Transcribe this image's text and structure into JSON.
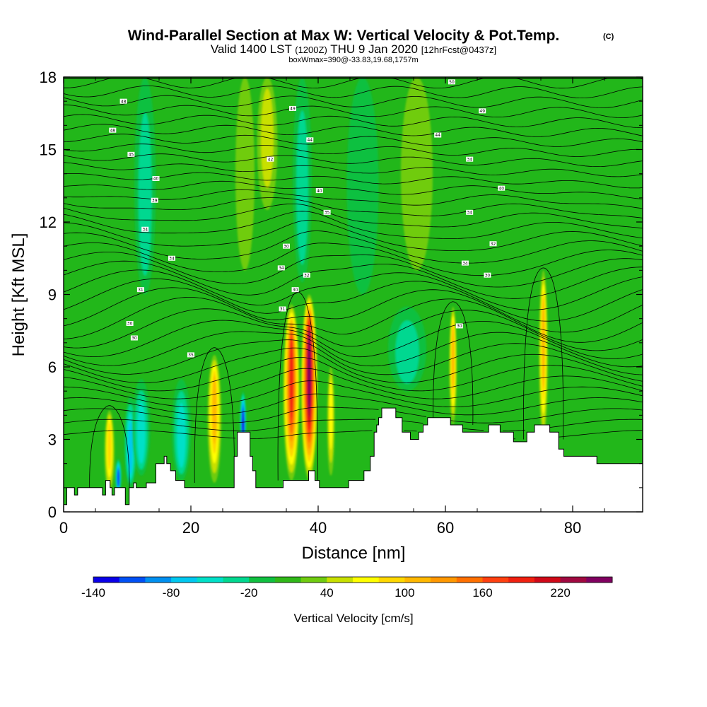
{
  "chart_data": {
    "type": "heatmap",
    "title": "Wind-Parallel Section at Max W: Vertical Velocity & Pot.Temp.",
    "title_mark": "(C)",
    "subtitle_parts": [
      "Valid 1400 LST ",
      "(1200Z)",
      " THU 9 Jan 2020 ",
      "[12hrFcst@0437z]"
    ],
    "subtitle2": "boxWmax=390@-33.83,19.68,1757m",
    "xlabel": "Distance [nm]",
    "ylabel": "Height [Kft MSL]",
    "xlim": [
      0,
      91
    ],
    "ylim": [
      0,
      18
    ],
    "x_ticks": [
      0,
      20,
      40,
      60,
      80
    ],
    "y_ticks": [
      0,
      3,
      6,
      9,
      12,
      15,
      18
    ],
    "colorbar": {
      "title": "Vertical Velocity [cm/s]",
      "edges": [
        -140,
        -120,
        -100,
        -80,
        -60,
        -40,
        -20,
        0,
        20,
        40,
        60,
        80,
        100,
        120,
        140,
        160,
        180,
        200,
        220,
        240,
        260
      ],
      "tick_values": [
        -140,
        -80,
        -20,
        40,
        100,
        160,
        220
      ],
      "colors": [
        "#0a00e8",
        "#0050f5",
        "#0090f0",
        "#00c8f0",
        "#00e0c8",
        "#00d890",
        "#10c040",
        "#30b818",
        "#70cc10",
        "#c8e000",
        "#ffff00",
        "#ffd800",
        "#ffb800",
        "#ff9800",
        "#ff7000",
        "#ff4010",
        "#f02010",
        "#d00818",
        "#a00840",
        "#800060"
      ]
    },
    "w_features": [
      {
        "x": 7.2,
        "w": 0.8,
        "base": 0.8,
        "top": 4.2,
        "peak": 95
      },
      {
        "x": 8.6,
        "w": 0.5,
        "base": 0.8,
        "top": 2.2,
        "peak": -105
      },
      {
        "x": 10.5,
        "w": 1.0,
        "base": 1.0,
        "top": 4.8,
        "peak": -70
      },
      {
        "x": 12.2,
        "w": 1.4,
        "base": 1.5,
        "top": 5.5,
        "peak": -50
      },
      {
        "x": 18.5,
        "w": 1.5,
        "base": 1.3,
        "top": 5.5,
        "peak": -45
      },
      {
        "x": 23.7,
        "w": 1.1,
        "base": 1.2,
        "top": 6.5,
        "peak": 110
      },
      {
        "x": 28.2,
        "w": 0.5,
        "base": 2.6,
        "top": 5.0,
        "peak": -125
      },
      {
        "x": 35.8,
        "w": 1.3,
        "base": 1.3,
        "top": 8.6,
        "peak": 180
      },
      {
        "x": 38.6,
        "w": 1.3,
        "base": 1.3,
        "top": 9.0,
        "peak": 260
      },
      {
        "x": 42.0,
        "w": 0.6,
        "base": 1.5,
        "top": 6.0,
        "peak": 60
      },
      {
        "x": 61.2,
        "w": 0.6,
        "base": 3.6,
        "top": 8.5,
        "peak": 100
      },
      {
        "x": 75.4,
        "w": 0.7,
        "base": 3.0,
        "top": 10.0,
        "peak": 100
      },
      {
        "x": 28.5,
        "w": 1.5,
        "base": 10.0,
        "top": 18.0,
        "peak": 30
      },
      {
        "x": 32.0,
        "w": 1.6,
        "base": 12.5,
        "top": 18.0,
        "peak": 50
      },
      {
        "x": 37.5,
        "w": 1.5,
        "base": 9.5,
        "top": 18.0,
        "peak": -35
      },
      {
        "x": 12.8,
        "w": 1.7,
        "base": 9.0,
        "top": 18.0,
        "peak": -30
      },
      {
        "x": 55.5,
        "w": 2.5,
        "base": 10.0,
        "top": 18.0,
        "peak": 20
      },
      {
        "x": 65.0,
        "w": 2.0,
        "base": 9.0,
        "top": 16.5,
        "peak": 10
      },
      {
        "x": 82.5,
        "w": 2.2,
        "base": 9.0,
        "top": 18.0,
        "peak": 15
      },
      {
        "x": 54.0,
        "w": 3.0,
        "base": 5.0,
        "top": 8.5,
        "peak": -25
      },
      {
        "x": 3.5,
        "w": 2.5,
        "base": 10.0,
        "top": 18.0,
        "peak": 5
      },
      {
        "x": 47.0,
        "w": 2.5,
        "base": 9.0,
        "top": 18.0,
        "peak": -12
      }
    ],
    "terrain": [
      [
        0,
        0.3
      ],
      [
        0.5,
        1.0
      ],
      [
        1.7,
        0.7
      ],
      [
        2.2,
        1.0
      ],
      [
        5.8,
        1.0
      ],
      [
        6.1,
        0.7
      ],
      [
        6.6,
        1.3
      ],
      [
        7.3,
        1.0
      ],
      [
        7.6,
        0.7
      ],
      [
        8.0,
        1.0
      ],
      [
        9.5,
        1.0
      ],
      [
        9.7,
        0.3
      ],
      [
        10.3,
        1.0
      ],
      [
        11.0,
        1.2
      ],
      [
        11.4,
        1.0
      ],
      [
        13.0,
        1.2
      ],
      [
        14.5,
        2.0
      ],
      [
        15.8,
        2.3
      ],
      [
        16.2,
        2.0
      ],
      [
        16.8,
        1.7
      ],
      [
        17.6,
        1.3
      ],
      [
        19.0,
        1.0
      ],
      [
        26.0,
        1.0
      ],
      [
        26.8,
        2.3
      ],
      [
        27.3,
        3.3
      ],
      [
        28.5,
        3.3
      ],
      [
        29.3,
        2.3
      ],
      [
        29.7,
        1.7
      ],
      [
        30.2,
        1.0
      ],
      [
        30.8,
        1.0
      ],
      [
        33.8,
        1.0
      ],
      [
        34.5,
        1.3
      ],
      [
        37.8,
        1.3
      ],
      [
        38.5,
        1.7
      ],
      [
        39.5,
        1.3
      ],
      [
        40.2,
        1.0
      ],
      [
        43.5,
        1.0
      ],
      [
        44.8,
        1.3
      ],
      [
        47.2,
        1.7
      ],
      [
        48.2,
        2.3
      ],
      [
        48.8,
        3.3
      ],
      [
        49.2,
        3.6
      ],
      [
        49.5,
        3.9
      ],
      [
        50.0,
        4.3
      ],
      [
        51.5,
        4.3
      ],
      [
        52.2,
        3.9
      ],
      [
        53.2,
        3.3
      ],
      [
        54.5,
        3.0
      ],
      [
        55.8,
        3.3
      ],
      [
        56.5,
        3.6
      ],
      [
        57.2,
        3.9
      ],
      [
        60.0,
        3.9
      ],
      [
        60.8,
        3.6
      ],
      [
        61.5,
        3.6
      ],
      [
        62.7,
        3.3
      ],
      [
        66.0,
        3.3
      ],
      [
        66.8,
        3.6
      ],
      [
        67.7,
        3.6
      ],
      [
        68.6,
        3.3
      ],
      [
        70.7,
        2.9
      ],
      [
        72.8,
        3.3
      ],
      [
        74.0,
        3.6
      ],
      [
        75.2,
        3.6
      ],
      [
        76.4,
        3.3
      ],
      [
        77.8,
        2.6
      ],
      [
        78.6,
        2.3
      ],
      [
        83.3,
        2.3
      ],
      [
        83.8,
        2.0
      ],
      [
        91.0,
        2.0
      ]
    ],
    "isentropes_note": "Potential temperature contours (labels 30-60)",
    "isentrope_labels": [
      {
        "text": "48",
        "x": 9.4,
        "y": 17.0
      },
      {
        "text": "48",
        "x": 7.7,
        "y": 15.8
      },
      {
        "text": "45",
        "x": 10.6,
        "y": 14.8
      },
      {
        "text": "40",
        "x": 14.5,
        "y": 13.8
      },
      {
        "text": "39",
        "x": 14.3,
        "y": 12.9
      },
      {
        "text": "34",
        "x": 12.8,
        "y": 11.7
      },
      {
        "text": "34",
        "x": 17.0,
        "y": 10.5
      },
      {
        "text": "31",
        "x": 12.1,
        "y": 9.2
      },
      {
        "text": "30",
        "x": 10.4,
        "y": 7.8
      },
      {
        "text": "30",
        "x": 11.1,
        "y": 7.2
      },
      {
        "text": "35",
        "x": 20.0,
        "y": 6.5
      },
      {
        "text": "49",
        "x": 36.0,
        "y": 16.7
      },
      {
        "text": "44",
        "x": 38.7,
        "y": 15.4
      },
      {
        "text": "42",
        "x": 32.5,
        "y": 14.6
      },
      {
        "text": "40",
        "x": 40.2,
        "y": 13.3
      },
      {
        "text": "35",
        "x": 41.4,
        "y": 12.4
      },
      {
        "text": "30",
        "x": 35.0,
        "y": 11.0
      },
      {
        "text": "34",
        "x": 34.2,
        "y": 10.1
      },
      {
        "text": "32",
        "x": 38.2,
        "y": 9.8
      },
      {
        "text": "30",
        "x": 36.4,
        "y": 9.2
      },
      {
        "text": "31",
        "x": 34.4,
        "y": 8.4
      },
      {
        "text": "50",
        "x": 61.0,
        "y": 17.8
      },
      {
        "text": "49",
        "x": 65.8,
        "y": 16.6
      },
      {
        "text": "44",
        "x": 58.8,
        "y": 15.6
      },
      {
        "text": "34",
        "x": 63.8,
        "y": 14.6
      },
      {
        "text": "40",
        "x": 68.8,
        "y": 13.4
      },
      {
        "text": "34",
        "x": 63.8,
        "y": 12.4
      },
      {
        "text": "32",
        "x": 67.5,
        "y": 11.1
      },
      {
        "text": "34",
        "x": 63.1,
        "y": 10.3
      },
      {
        "text": "30",
        "x": 66.6,
        "y": 9.8
      },
      {
        "text": "30",
        "x": 62.2,
        "y": 7.7
      }
    ]
  }
}
